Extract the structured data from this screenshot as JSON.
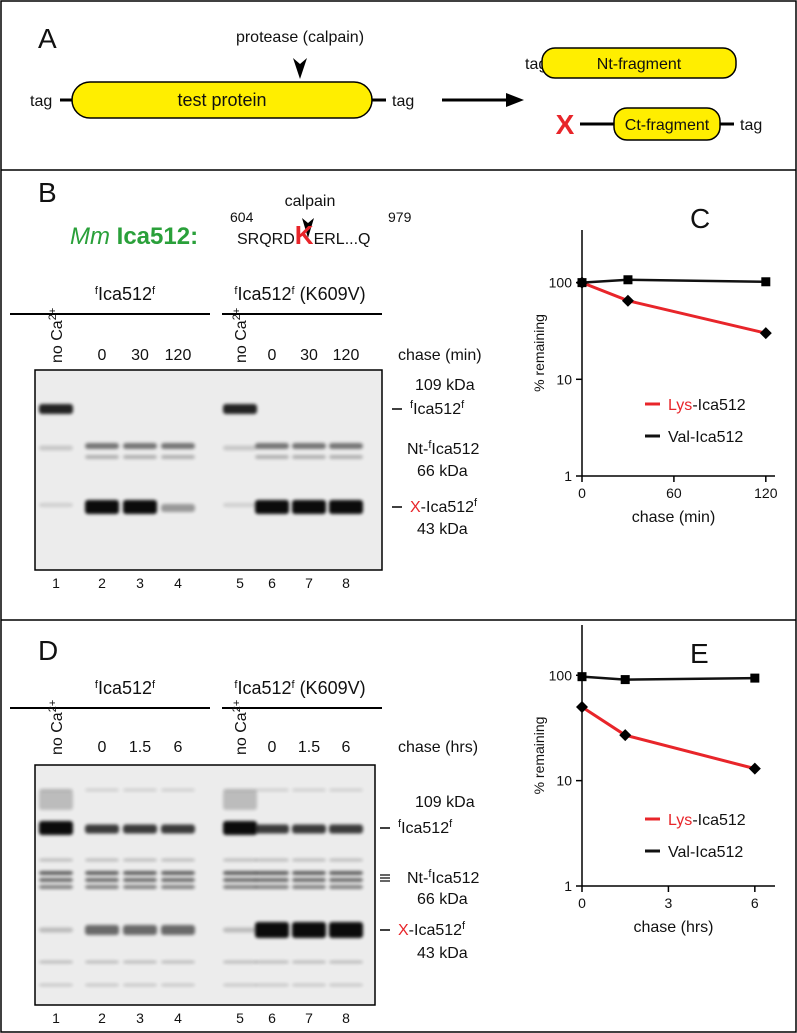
{
  "panel_a": {
    "label": "A",
    "protease": "protease (calpain)",
    "protein": "test protein",
    "tag_left": "tag",
    "tag_right": "tag",
    "nt_tag": "tag",
    "nt_fragment": "Nt-fragment",
    "ct_x": "X",
    "ct_fragment": "Ct-fragment",
    "ct_tag": "tag"
  },
  "panel_b": {
    "label": "B",
    "species": "Mm",
    "gene": "Ica512:",
    "calpain": "calpain",
    "start": "604",
    "seq_pre": "SRQRD",
    "seq_k": "K",
    "seq_post": "ERL...Q",
    "end": "979",
    "group_wt": {
      "name": [
        "f",
        "Ica512",
        "f"
      ],
      "no_ca": [
        "no Ca",
        "2+"
      ],
      "times": [
        "0",
        "30",
        "120"
      ]
    },
    "group_mut": {
      "name": [
        "f",
        "Ica512",
        "f",
        " (K609V)"
      ],
      "no_ca": [
        "no Ca",
        "2+"
      ],
      "times": [
        "0",
        "30",
        "120"
      ]
    },
    "chase": "chase (min)",
    "lanes": [
      "1",
      "2",
      "3",
      "4",
      "5",
      "6",
      "7",
      "8"
    ],
    "markers": {
      "mw_109": "109 kDa",
      "full": [
        "f",
        "Ica512",
        "f"
      ],
      "nt": [
        "Nt-",
        "f",
        "Ica512"
      ],
      "mw_66": "66 kDa",
      "ct": [
        "X",
        "-Ica512",
        "f"
      ],
      "mw_43": "43 kDa"
    }
  },
  "panel_d": {
    "label": "D",
    "group_wt": {
      "name": [
        "f",
        "Ica512",
        "f"
      ],
      "no_ca": [
        "no Ca",
        "2+"
      ],
      "times": [
        "0",
        "1.5",
        "6"
      ]
    },
    "group_mut": {
      "name": [
        "f",
        "Ica512",
        "f",
        " (K609V)"
      ],
      "no_ca": [
        "no Ca",
        "2+"
      ],
      "times": [
        "0",
        "1.5",
        "6"
      ]
    },
    "chase": "chase (hrs)",
    "lanes": [
      "1",
      "2",
      "3",
      "4",
      "5",
      "6",
      "7",
      "8"
    ],
    "markers": {
      "mw_109": "109 kDa",
      "full": [
        "f",
        "Ica512",
        "f"
      ],
      "nt": [
        "Nt-",
        "f",
        "Ica512"
      ],
      "mw_66": "66 kDa",
      "ct": [
        "X",
        "-Ica512",
        "f"
      ],
      "mw_43": "43 kDa"
    }
  },
  "chart_data": [
    {
      "type": "line",
      "label": "C",
      "x_label": "chase (min)",
      "y_label": "% remaining",
      "log_y": true,
      "x": [
        0,
        30,
        120
      ],
      "xlim": [
        0,
        126
      ],
      "xticks": [
        0,
        60,
        120
      ],
      "ylim": [
        1,
        350
      ],
      "yticks": [
        1,
        10,
        100
      ],
      "series": [
        {
          "name": "Lys-Ica512",
          "color": "#e8252a",
          "name_prefix_color": "#e8252a",
          "marker": "diamond",
          "values": [
            100,
            65,
            30
          ]
        },
        {
          "name": "Val-Ica512",
          "color": "#111111",
          "name_prefix_color": "#111111",
          "marker": "square",
          "values": [
            100,
            107,
            102
          ]
        }
      ]
    },
    {
      "type": "line",
      "label": "E",
      "x_label": "chase (hrs)",
      "y_label": "% remaining",
      "log_y": true,
      "x": [
        0,
        1.5,
        6
      ],
      "xlim": [
        0,
        6.7
      ],
      "xticks": [
        0,
        3,
        6
      ],
      "ylim": [
        1,
        300
      ],
      "yticks": [
        1,
        10,
        100
      ],
      "series": [
        {
          "name": "Lys-Ica512",
          "color": "#e8252a",
          "name_prefix_color": "#e8252a",
          "marker": "diamond",
          "values": [
            50,
            27,
            13
          ]
        },
        {
          "name": "Val-Ica512",
          "color": "#111111",
          "name_prefix_color": "#111111",
          "marker": "square",
          "values": [
            97,
            91,
            94
          ]
        }
      ]
    }
  ]
}
